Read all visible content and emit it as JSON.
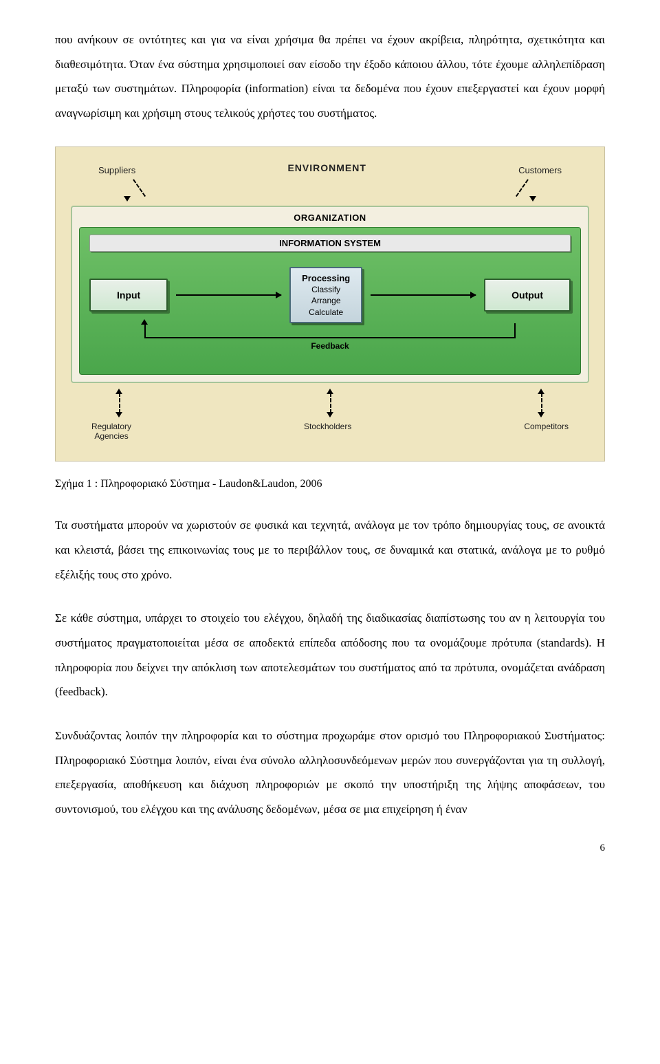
{
  "paragraphs": {
    "p1": "που ανήκουν σε οντότητες και για να είναι χρήσιμα θα πρέπει να έχουν ακρίβεια, πληρότητα, σχετικότητα και διαθεσιμότητα. Όταν ένα σύστημα χρησιμοποιεί σαν είσοδο την έξοδο κάποιου άλλου, τότε έχουμε αλληλεπίδραση μεταξύ των συστημάτων. Πληροφορία (information) είναι τα δεδομένα που έχουν επεξεργαστεί και έχουν μορφή αναγνωρίσιμη και χρήσιμη στους τελικούς χρήστες του συστήματος.",
    "caption": "Σχήμα 1 : Πληροφοριακό Σύστημα - Laudon&Laudon, 2006",
    "p2": "Τα συστήματα μπορούν να χωριστούν σε φυσικά και τεχνητά, ανάλογα με τον τρόπο δημιουργίας τους, σε ανοικτά και κλειστά, βάσει της επικοινωνίας τους με το περιβάλλον τους, σε δυναμικά και στατικά, ανάλογα με το ρυθμό εξέλιξής τους στο χρόνο.",
    "p3": "Σε κάθε σύστημα, υπάρχει το στοιχείο του ελέγχου, δηλαδή της διαδικασίας διαπίστωσης του αν η λειτουργία του συστήματος πραγματοποιείται μέσα σε αποδεκτά επίπεδα απόδοσης που τα ονομάζουμε πρότυπα (standards). Η πληροφορία που δείχνει την απόκλιση των αποτελεσμάτων του συστήματος από τα πρότυπα, ονομάζεται ανάδραση (feedback).",
    "p4": "Συνδυάζοντας λοιπόν την πληροφορία και το σύστημα προχωράμε στον ορισμό του Πληροφοριακού Συστήματος: Πληροφοριακό Σύστημα λοιπόν, είναι ένα σύνολο αλληλοσυνδεόμενων μερών που συνεργάζονται για τη συλλογή, επεξεργασία, αποθήκευση και διάχυση πληροφοριών με σκοπό την υποστήριξη της λήψης αποφάσεων, του συντονισμού, του ελέγχου και της ανάλυσης δεδομένων, μέσα σε μια επιχείρηση ή έναν"
  },
  "page_number": "6",
  "diagram": {
    "type": "flowchart",
    "background_color": "#efe6c0",
    "organization_band_color": "#f3efe0",
    "system_box_color_start": "#6fc067",
    "system_box_color_end": "#4aa64b",
    "io_box_color_start": "#e9f0e9",
    "io_box_color_end": "#cfe8d1",
    "proc_box_color_start": "#dfeaf0",
    "proc_box_color_end": "#c4d4dc",
    "arrow_color": "#000000",
    "label_font": "Arial",
    "env": {
      "title": "ENVIRONMENT",
      "suppliers": "Suppliers",
      "customers": "Customers"
    },
    "org_title": "ORGANIZATION",
    "system_title": "INFORMATION SYSTEM",
    "input": "Input",
    "output": "Output",
    "processing_header": "Processing",
    "processing_lines": [
      "Classify",
      "Arrange",
      "Calculate"
    ],
    "feedback": "Feedback",
    "bottom": {
      "left_line1": "Regulatory",
      "left_line2": "Agencies",
      "middle": "Stockholders",
      "right": "Competitors"
    }
  }
}
